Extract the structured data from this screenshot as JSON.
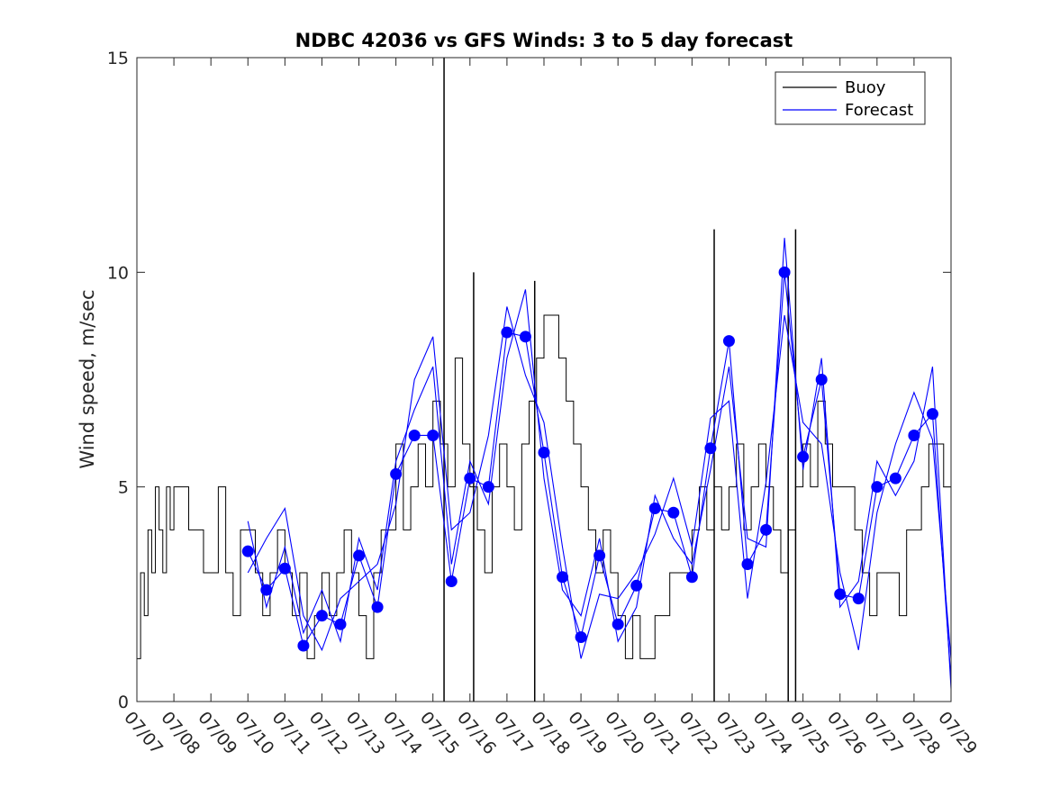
{
  "chart_data": {
    "type": "line",
    "title": "NDBC 42036 vs GFS Winds: 3 to 5 day forecast",
    "xlabel": "",
    "ylabel": "Wind speed, m/sec",
    "xlim": [
      0,
      22
    ],
    "ylim": [
      0,
      15
    ],
    "x_unit": "days from 07/07",
    "x_ticks": [
      "07/07",
      "07/08",
      "07/09",
      "07/10",
      "07/11",
      "07/12",
      "07/13",
      "07/14",
      "07/15",
      "07/16",
      "07/17",
      "07/18",
      "07/19",
      "07/20",
      "07/21",
      "07/22",
      "07/23",
      "07/24",
      "07/25",
      "07/26",
      "07/27",
      "07/28",
      "07/29"
    ],
    "y_ticks": [
      0,
      5,
      10,
      15
    ],
    "grid": false,
    "legend": {
      "position": "top-right",
      "entries": [
        "Buoy",
        "Forecast"
      ]
    },
    "colors": {
      "buoy": "#000000",
      "forecast": "#0000ff",
      "axes": "#262626"
    },
    "series": [
      {
        "name": "Buoy",
        "x": [
          0.0,
          0.1,
          0.2,
          0.3,
          0.4,
          0.5,
          0.6,
          0.7,
          0.8,
          0.9,
          1.0,
          1.2,
          1.4,
          1.6,
          1.8,
          2.0,
          2.2,
          2.4,
          2.6,
          2.8,
          3.0,
          3.2,
          3.4,
          3.6,
          3.8,
          4.0,
          4.2,
          4.4,
          4.6,
          4.8,
          5.0,
          5.2,
          5.4,
          5.6,
          5.8,
          6.0,
          6.2,
          6.4,
          6.6,
          6.8,
          7.0,
          7.2,
          7.4,
          7.6,
          7.8,
          8.0,
          8.2,
          8.4,
          8.6,
          8.8,
          9.0,
          9.2,
          9.4,
          9.6,
          9.8,
          10.0,
          10.2,
          10.4,
          10.6,
          10.8,
          11.0,
          11.2,
          11.4,
          11.6,
          11.8,
          12.0,
          12.2,
          12.4,
          12.6,
          12.8,
          13.0,
          13.2,
          13.4,
          13.6,
          13.8,
          14.0,
          14.2,
          14.4,
          14.6,
          14.8,
          15.0,
          15.2,
          15.4,
          15.6,
          15.8,
          16.0,
          16.2,
          16.4,
          16.6,
          16.8,
          17.0,
          17.2,
          17.4,
          17.6,
          17.8,
          18.0,
          18.2,
          18.4,
          18.6,
          18.8,
          19.0,
          19.2,
          19.4,
          19.6,
          19.8,
          20.0,
          20.2,
          20.4,
          20.6,
          20.8,
          21.0,
          21.2,
          21.4,
          21.6,
          21.8,
          22.0
        ],
        "y": [
          1,
          3,
          2,
          4,
          3,
          5,
          4,
          3,
          5,
          4,
          5,
          5,
          4,
          4,
          3,
          3,
          5,
          3,
          2,
          4,
          4,
          3,
          2,
          3,
          4,
          3,
          2,
          3,
          1,
          2,
          3,
          2,
          3,
          4,
          3,
          2,
          1,
          3,
          4,
          4,
          6,
          4,
          5,
          6,
          5,
          7,
          6,
          5,
          8,
          6,
          5,
          4,
          3,
          5,
          6,
          5,
          4,
          6,
          7,
          8,
          9,
          9,
          8,
          7,
          6,
          5,
          4,
          3,
          4,
          3,
          2,
          1,
          2,
          1,
          1,
          2,
          2,
          3,
          3,
          3,
          4,
          5,
          4,
          5,
          4,
          5,
          6,
          4,
          5,
          6,
          5,
          4,
          3,
          4,
          5,
          6,
          5,
          7,
          6,
          5,
          5,
          5,
          4,
          3,
          2,
          3,
          3,
          3,
          2,
          4,
          4,
          5,
          6,
          6,
          5,
          4
        ],
        "spikes": [
          {
            "x": 8.3,
            "y": 15
          },
          {
            "x": 9.1,
            "y": 10
          },
          {
            "x": 10.75,
            "y": 9.8
          },
          {
            "x": 15.6,
            "y": 11
          },
          {
            "x": 17.8,
            "y": 11
          },
          {
            "x": 17.6,
            "y": 10
          }
        ]
      },
      {
        "name": "Forecast",
        "x": [
          3.0,
          3.5,
          4.0,
          4.5,
          5.0,
          5.5,
          6.0,
          6.5,
          7.0,
          7.5,
          8.0,
          8.5,
          9.0,
          9.5,
          10.0,
          10.5,
          11.0,
          11.5,
          12.0,
          12.5,
          13.0,
          13.5,
          14.0,
          14.5,
          15.0,
          15.5,
          16.0,
          16.5,
          17.0,
          17.5,
          18.0,
          18.5,
          19.0,
          19.5,
          20.0,
          20.5,
          21.0,
          21.5,
          22.0
        ],
        "y": [
          3.5,
          2.6,
          3.1,
          1.3,
          2.0,
          1.8,
          3.4,
          2.2,
          5.3,
          6.2,
          6.2,
          2.8,
          5.2,
          5.0,
          8.6,
          8.5,
          5.8,
          2.9,
          1.5,
          3.4,
          1.8,
          2.7,
          4.5,
          4.4,
          2.9,
          5.9,
          8.4,
          3.2,
          4.0,
          10.0,
          5.7,
          7.5,
          2.5,
          2.4,
          5.0,
          5.2,
          6.2,
          6.7,
          0.5
        ]
      },
      {
        "name": "",
        "x": [
          3.0,
          3.5,
          4.0,
          4.5,
          5.0,
          5.5,
          6.0,
          6.5,
          7.0,
          7.5,
          8.0,
          8.5,
          9.0,
          9.5,
          10.0,
          10.5,
          11.0,
          11.5,
          12.0,
          12.5,
          13.0,
          13.5,
          14.0,
          14.5,
          15.0,
          15.5,
          16.0,
          16.5,
          17.0,
          17.5,
          18.0,
          18.5,
          19.0,
          19.5,
          20.0,
          20.5,
          21.0,
          21.5,
          22.0
        ],
        "y": [
          3.0,
          3.8,
          4.5,
          2.0,
          1.2,
          2.4,
          2.8,
          3.2,
          4.6,
          7.5,
          8.5,
          4.0,
          4.4,
          6.2,
          9.2,
          7.6,
          6.5,
          3.6,
          1.0,
          2.5,
          2.4,
          3.0,
          3.9,
          5.2,
          3.6,
          6.6,
          7.0,
          2.4,
          5.1,
          9.0,
          6.5,
          6.0,
          3.0,
          1.2,
          4.4,
          6.0,
          7.2,
          6.1,
          1.0
        ]
      },
      {
        "name": "",
        "x": [
          3.0,
          3.5,
          4.0,
          4.5,
          5.0,
          5.5,
          6.0,
          6.5,
          7.0,
          7.5,
          8.0,
          8.5,
          9.0,
          9.5,
          10.0,
          10.5,
          11.0,
          11.5,
          12.0,
          12.5,
          13.0,
          13.5,
          14.0,
          14.5,
          15.0,
          15.5,
          16.0,
          16.5,
          17.0,
          17.5,
          18.0,
          18.5,
          19.0,
          19.5,
          20.0,
          20.5,
          21.0,
          21.5,
          22.0
        ],
        "y": [
          4.2,
          2.2,
          3.6,
          1.6,
          2.6,
          1.4,
          3.8,
          2.6,
          5.6,
          6.8,
          7.8,
          3.2,
          5.6,
          4.6,
          8.0,
          9.6,
          5.2,
          2.6,
          2.0,
          3.8,
          1.4,
          2.2,
          4.8,
          3.8,
          3.2,
          5.4,
          7.8,
          3.8,
          3.6,
          10.8,
          5.4,
          8.0,
          2.2,
          2.8,
          5.6,
          4.8,
          5.6,
          7.8,
          0.3
        ]
      }
    ],
    "markers": {
      "series": "Forecast",
      "x": [
        3.0,
        3.5,
        4.0,
        4.5,
        5.0,
        5.5,
        6.0,
        6.5,
        7.0,
        7.5,
        8.0,
        8.5,
        9.0,
        9.5,
        10.0,
        10.5,
        11.0,
        11.5,
        12.0,
        12.5,
        13.0,
        13.5,
        14.0,
        14.5,
        15.0,
        15.5,
        16.0,
        16.5,
        17.0,
        17.5,
        18.0,
        18.5,
        19.0,
        19.5,
        20.0,
        20.5,
        21.0,
        21.5
      ],
      "y": [
        3.5,
        2.6,
        3.1,
        1.3,
        2.0,
        1.8,
        3.4,
        2.2,
        5.3,
        6.2,
        6.2,
        2.8,
        5.2,
        5.0,
        8.6,
        8.5,
        5.8,
        2.9,
        1.5,
        3.4,
        1.8,
        2.7,
        4.5,
        4.4,
        2.9,
        5.9,
        8.4,
        3.2,
        4.0,
        10.0,
        5.7,
        7.5,
        2.5,
        2.4,
        5.0,
        5.2,
        6.2,
        6.7
      ]
    }
  }
}
